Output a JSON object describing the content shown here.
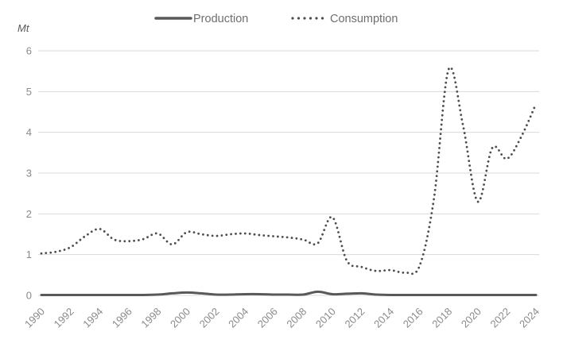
{
  "chart_data": {
    "type": "line",
    "title": "",
    "xlabel": "",
    "ylabel": "Mt",
    "ylim": [
      0,
      6
    ],
    "yticks": [
      0,
      1,
      2,
      3,
      4,
      5,
      6
    ],
    "xticks": [
      1990,
      1992,
      1994,
      1996,
      1998,
      2000,
      2002,
      2004,
      2006,
      2008,
      2010,
      2012,
      2014,
      2016,
      2018,
      2020,
      2022,
      2024
    ],
    "x": [
      1990,
      1991,
      1992,
      1993,
      1994,
      1995,
      1996,
      1997,
      1998,
      1999,
      2000,
      2001,
      2002,
      2003,
      2004,
      2005,
      2006,
      2007,
      2008,
      2009,
      2010,
      2011,
      2012,
      2013,
      2014,
      2015,
      2016,
      2017,
      2018,
      2019,
      2020,
      2021,
      2022,
      2023,
      2024
    ],
    "series": [
      {
        "name": "Production",
        "line_style": "solid",
        "color": "#595959",
        "values": [
          0.01,
          0.01,
          0.01,
          0.01,
          0.01,
          0.01,
          0.01,
          0.01,
          0.02,
          0.05,
          0.07,
          0.05,
          0.02,
          0.02,
          0.03,
          0.03,
          0.02,
          0.02,
          0.02,
          0.09,
          0.03,
          0.04,
          0.05,
          0.02,
          0.01,
          0.01,
          0.01,
          0.01,
          0.01,
          0.01,
          0.01,
          0.01,
          0.01,
          0.01,
          0.01
        ]
      },
      {
        "name": "Consumption",
        "line_style": "dotted",
        "color": "#4d4d4d",
        "values": [
          1.03,
          1.07,
          1.18,
          1.45,
          1.63,
          1.37,
          1.33,
          1.38,
          1.52,
          1.25,
          1.55,
          1.5,
          1.46,
          1.5,
          1.52,
          1.48,
          1.45,
          1.42,
          1.37,
          1.28,
          1.92,
          0.85,
          0.7,
          0.6,
          0.62,
          0.56,
          0.72,
          2.4,
          5.55,
          4.15,
          2.3,
          3.62,
          3.35,
          3.9,
          4.7
        ]
      }
    ],
    "grid": true,
    "legend_position": "top-center",
    "background": "#ffffff"
  },
  "styles": {
    "grid_color": "#d9d9d9",
    "tick_label_color": "#8a8a8a",
    "legend_text_color": "#6e6e6e",
    "unit_label_color": "#595959"
  }
}
